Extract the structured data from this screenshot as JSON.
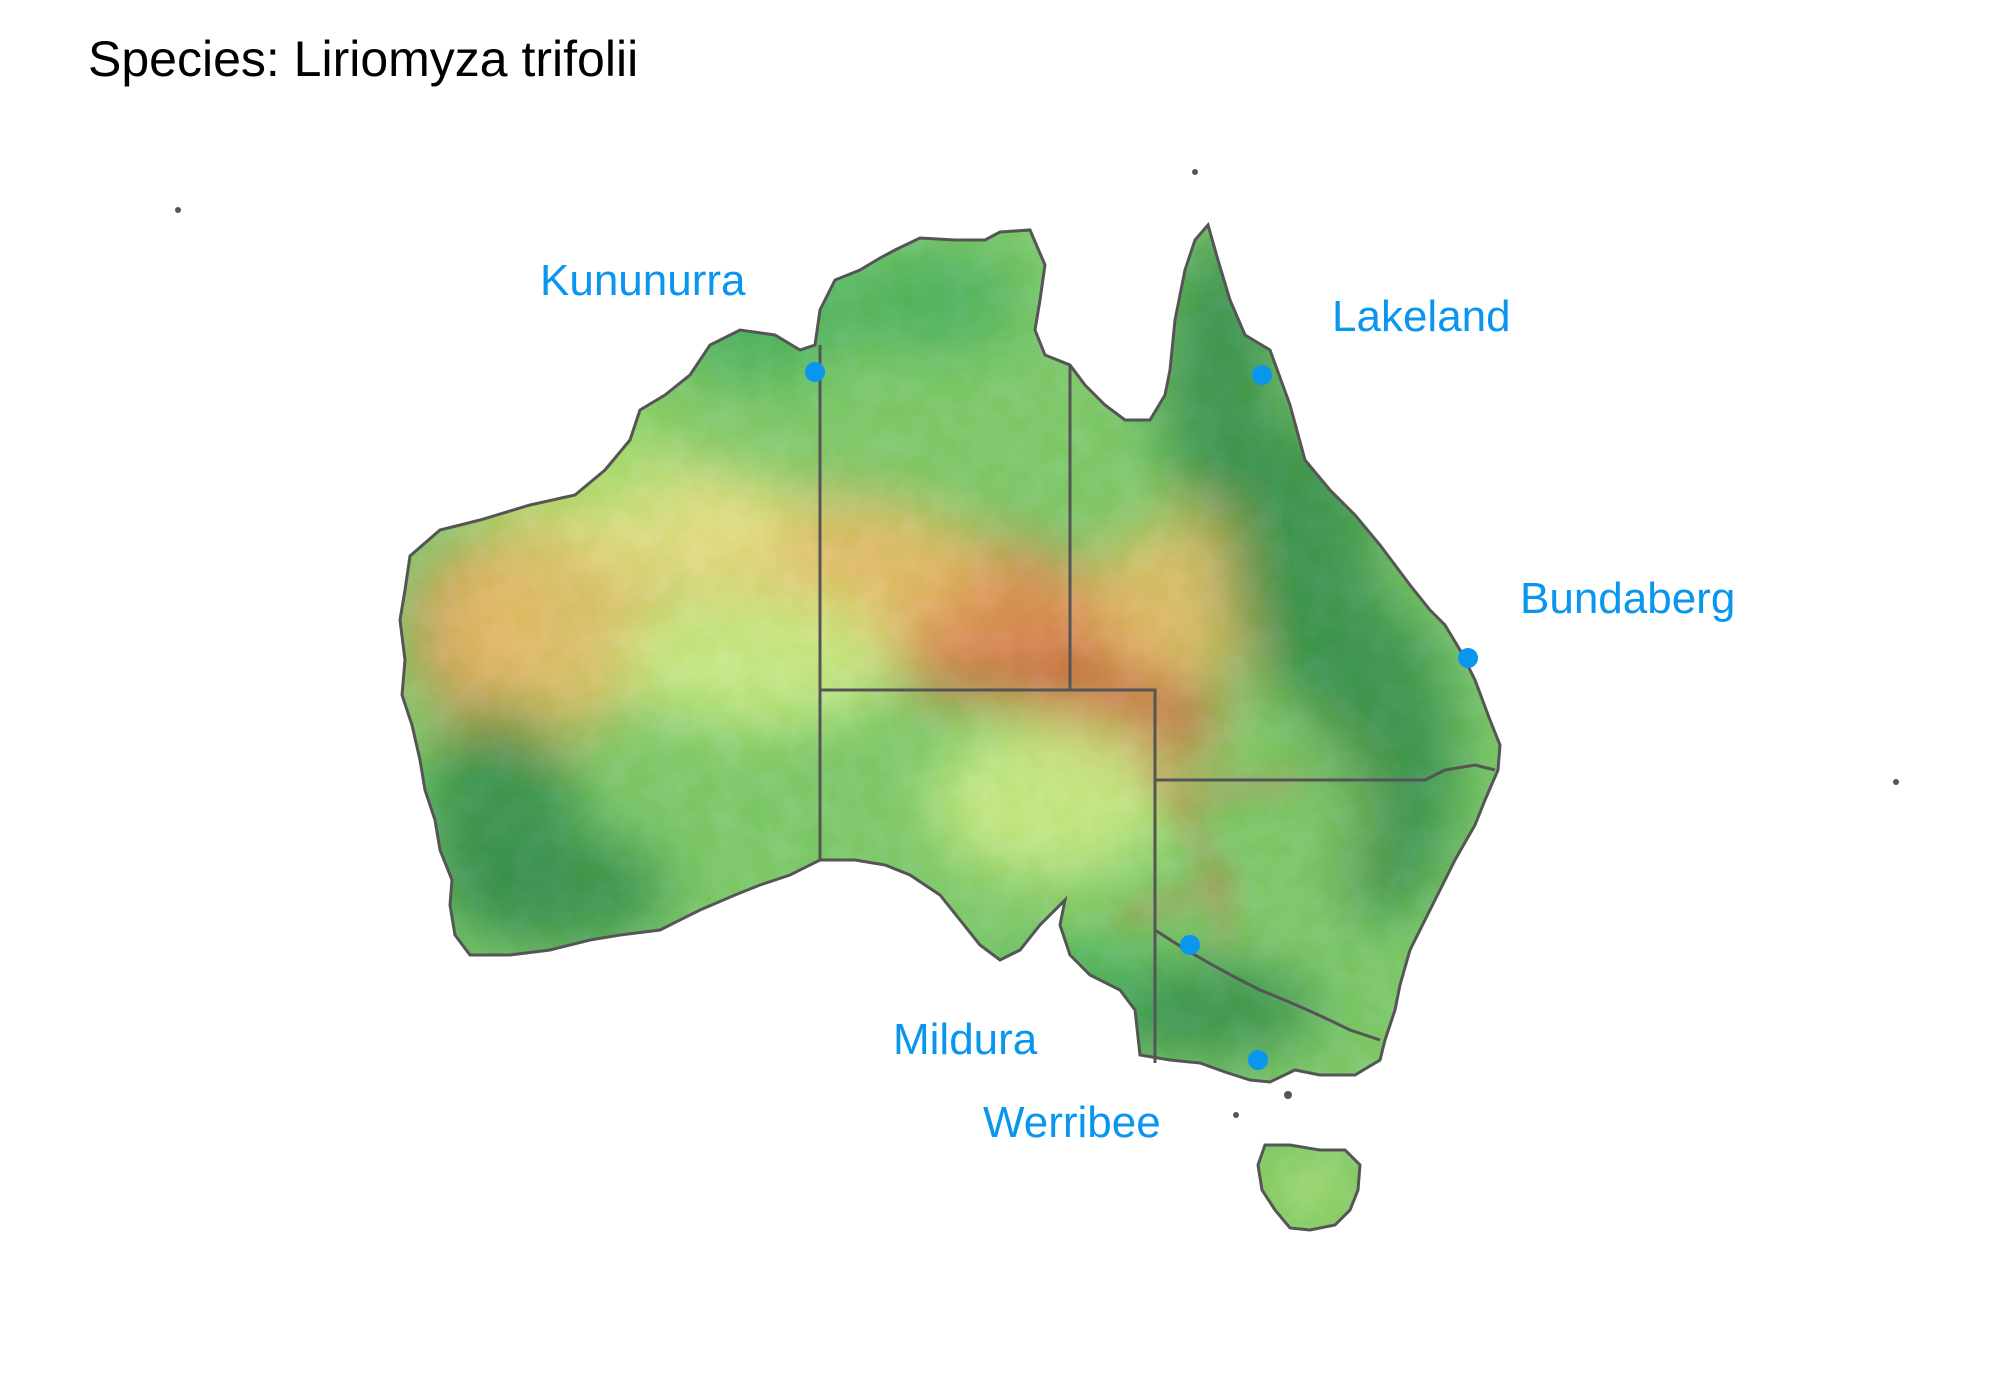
{
  "title": "Species: Liriomyza trifolii",
  "colors": {
    "marker": "#0a96ee",
    "label": "#0a96ee",
    "border": "#555555",
    "suitability_scale": [
      "#a50026",
      "#d73027",
      "#f46d43",
      "#fdae61",
      "#fee08b",
      "#d9ef8b",
      "#a6d96a",
      "#66bd63",
      "#1a9850",
      "#006837"
    ]
  },
  "locations": [
    {
      "name": "Kununurra"
    },
    {
      "name": "Lakeland"
    },
    {
      "name": "Bundaberg"
    },
    {
      "name": "Mildura"
    },
    {
      "name": "Werribee"
    }
  ]
}
